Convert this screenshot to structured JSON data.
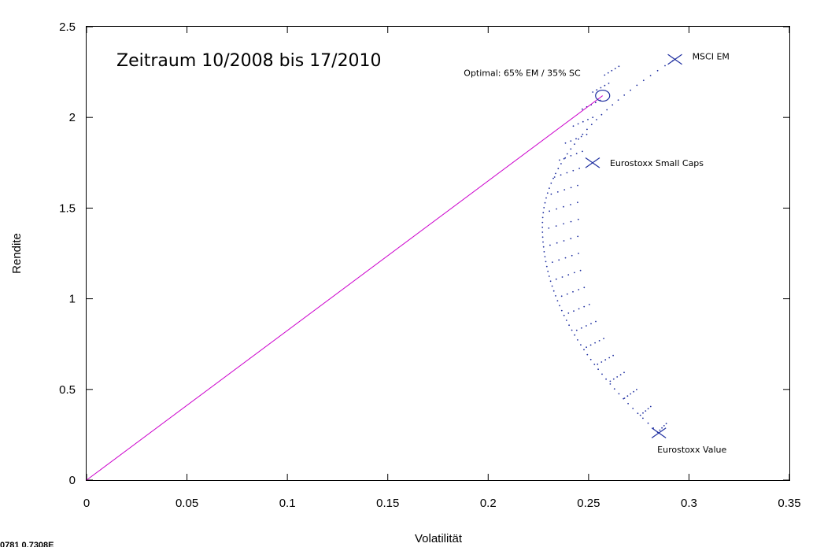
{
  "chart_data": {
    "type": "scatter",
    "title": "Zeitraum 10/2008 bis 17/2010",
    "xlabel": "Volatilität",
    "ylabel": "Rendite",
    "xlim": [
      0,
      0.35
    ],
    "ylim": [
      0,
      2.5
    ],
    "xticks": [
      "0",
      "0.05",
      "0.1",
      "0.15",
      "0.2",
      "0.25",
      "0.3",
      "0.35"
    ],
    "yticks": [
      "0",
      "0.5",
      "1",
      "1.5",
      "2",
      "2.5"
    ],
    "grid": false,
    "assets": [
      {
        "label": "MSCI EM",
        "x": 0.293,
        "y": 2.32
      },
      {
        "label": "Eurostoxx Small Caps",
        "x": 0.252,
        "y": 1.75
      },
      {
        "label": "Eurostoxx Value",
        "x": 0.285,
        "y": 0.26
      }
    ],
    "optimal": {
      "label": "Optimal: 65% EM / 35% SC",
      "x": 0.257,
      "y": 2.12
    },
    "capital_market_line": {
      "x": [
        0,
        0.257
      ],
      "y": [
        0,
        2.12
      ]
    },
    "frontier": {
      "min_variance": {
        "x": 0.227,
        "y": 1.4
      },
      "portfolio_cloud": [
        {
          "x": 0.2844,
          "y": 0.2638
        },
        {
          "x": 0.2758,
          "y": 0.3576
        },
        {
          "x": 0.2679,
          "y": 0.4514
        },
        {
          "x": 0.2608,
          "y": 0.5452
        },
        {
          "x": 0.2545,
          "y": 0.639
        },
        {
          "x": 0.2489,
          "y": 0.7328
        },
        {
          "x": 0.2441,
          "y": 0.8266
        },
        {
          "x": 0.24,
          "y": 0.9204
        },
        {
          "x": 0.2366,
          "y": 1.0142
        },
        {
          "x": 0.2339,
          "y": 1.108
        },
        {
          "x": 0.232,
          "y": 1.2018
        },
        {
          "x": 0.2308,
          "y": 1.2956
        },
        {
          "x": 0.2302,
          "y": 1.3894
        },
        {
          "x": 0.2305,
          "y": 1.4832
        },
        {
          "x": 0.2314,
          "y": 1.577
        },
        {
          "x": 0.2331,
          "y": 1.6708
        },
        {
          "x": 0.2355,
          "y": 1.7646
        },
        {
          "x": 0.2385,
          "y": 1.8584
        },
        {
          "x": 0.2424,
          "y": 1.9522
        },
        {
          "x": 0.2469,
          "y": 2.046
        },
        {
          "x": 0.2521,
          "y": 2.1398
        },
        {
          "x": 0.258,
          "y": 2.2336
        }
      ]
    }
  },
  "corner_readout": "0781  0.7308E"
}
